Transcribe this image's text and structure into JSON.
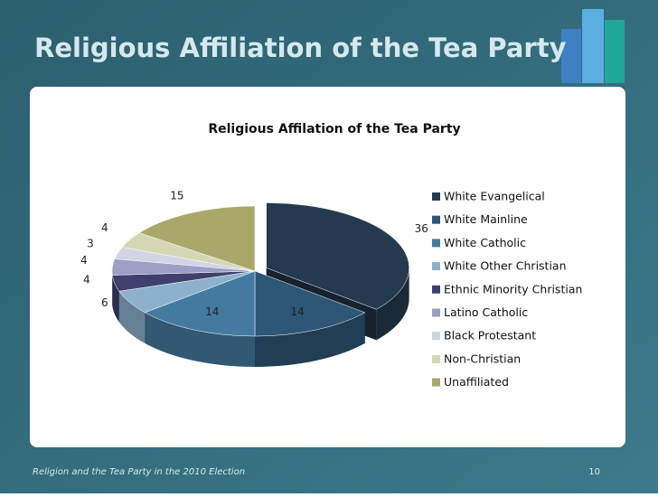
{
  "slide": {
    "title": "Religious Affiliation of the Tea Party",
    "footer": "Religion and the Tea Party in the 2010 Election",
    "page_number": 10
  },
  "chart_data": {
    "type": "pie",
    "title": "Religious Affilation of the Tea Party",
    "categories": [
      "White Evangelical",
      "White Mainline",
      "White Catholic",
      "White Other Christian",
      "Ethnic Minority Christian",
      "Latino Catholic",
      "Black Protestant",
      "Non-Christian",
      "Unaffiliated"
    ],
    "values": [
      36,
      14,
      14,
      6,
      4,
      4,
      3,
      4,
      15
    ],
    "colors": [
      "#243a4f",
      "#2e5676",
      "#457aa0",
      "#8db1cc",
      "#3f406e",
      "#9d9ec4",
      "#d0d4e4",
      "#d4d7b4",
      "#a9a86a"
    ],
    "legend": "right"
  }
}
